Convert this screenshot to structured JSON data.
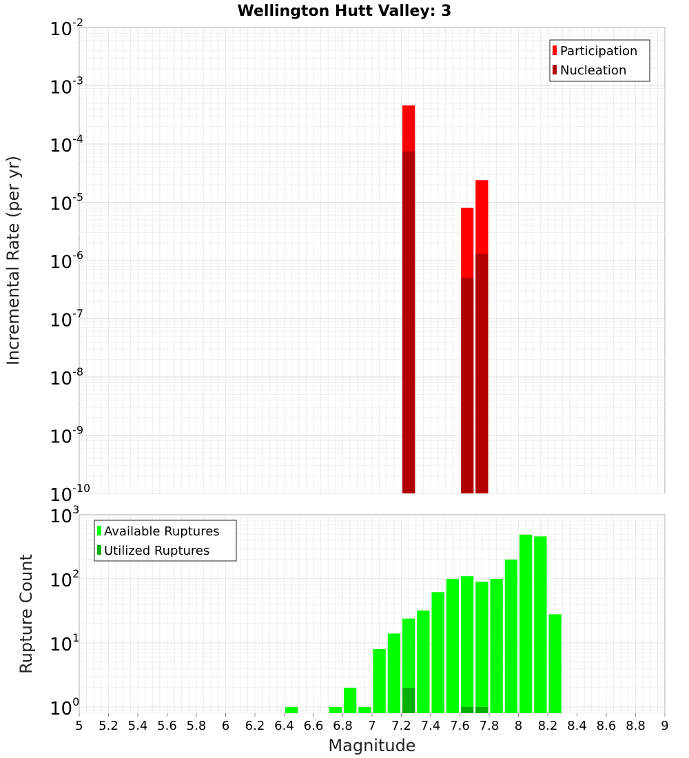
{
  "chart_data": [
    {
      "type": "bar",
      "title": "Wellington Hutt Valley: 3",
      "xlabel": "",
      "ylabel": "Incremental Rate (per yr)",
      "xlim": [
        5,
        9
      ],
      "yscale": "log",
      "ylim": [
        1e-10,
        0.01
      ],
      "y_ticks": [
        {
          "base": "10",
          "exp": "-10",
          "value": 1e-10
        },
        {
          "base": "10",
          "exp": "-9",
          "value": 1e-09
        },
        {
          "base": "10",
          "exp": "-8",
          "value": 1e-08
        },
        {
          "base": "10",
          "exp": "-7",
          "value": 1e-07
        },
        {
          "base": "10",
          "exp": "-6",
          "value": 1e-06
        },
        {
          "base": "10",
          "exp": "-5",
          "value": 1e-05
        },
        {
          "base": "10",
          "exp": "-4",
          "value": 0.0001
        },
        {
          "base": "10",
          "exp": "-3",
          "value": 0.001
        },
        {
          "base": "10",
          "exp": "-2",
          "value": 0.01
        }
      ],
      "bin_width": 0.1,
      "legend_position": "top-right",
      "series": [
        {
          "name": "Participation",
          "color": "#ff0000",
          "points": [
            {
              "x": 7.25,
              "y": 0.00046
            },
            {
              "x": 7.65,
              "y": 8e-06
            },
            {
              "x": 7.75,
              "y": 2.4e-05
            }
          ]
        },
        {
          "name": "Nucleation",
          "color": "#b00000",
          "points": [
            {
              "x": 7.25,
              "y": 7.5e-05
            },
            {
              "x": 7.65,
              "y": 5e-07
            },
            {
              "x": 7.75,
              "y": 1.3e-06
            }
          ]
        }
      ]
    },
    {
      "type": "bar",
      "xlabel": "Magnitude",
      "ylabel": "Rupture Count",
      "xlim": [
        5,
        9
      ],
      "x_ticks": [
        "5",
        "5.2",
        "5.4",
        "5.6",
        "5.8",
        "6",
        "6.2",
        "6.4",
        "6.6",
        "6.8",
        "7",
        "7.2",
        "7.4",
        "7.6",
        "7.8",
        "8",
        "8.2",
        "8.4",
        "8.6",
        "8.8",
        "9"
      ],
      "yscale": "log",
      "ylim": [
        0.8,
        1000
      ],
      "y_ticks": [
        {
          "base": "10",
          "exp": "0",
          "value": 1
        },
        {
          "base": "10",
          "exp": "1",
          "value": 10
        },
        {
          "base": "10",
          "exp": "2",
          "value": 100
        },
        {
          "base": "10",
          "exp": "3",
          "value": 1000
        }
      ],
      "bin_width": 0.1,
      "legend_position": "top-left",
      "series": [
        {
          "name": "Available Ruptures",
          "color": "#00ff00",
          "points": [
            {
              "x": 6.45,
              "y": 1
            },
            {
              "x": 6.75,
              "y": 1
            },
            {
              "x": 6.85,
              "y": 2
            },
            {
              "x": 6.95,
              "y": 1
            },
            {
              "x": 7.05,
              "y": 8
            },
            {
              "x": 7.15,
              "y": 14
            },
            {
              "x": 7.25,
              "y": 24
            },
            {
              "x": 7.35,
              "y": 32
            },
            {
              "x": 7.45,
              "y": 62
            },
            {
              "x": 7.55,
              "y": 100
            },
            {
              "x": 7.65,
              "y": 110
            },
            {
              "x": 7.75,
              "y": 90
            },
            {
              "x": 7.85,
              "y": 100
            },
            {
              "x": 7.95,
              "y": 200
            },
            {
              "x": 8.05,
              "y": 490
            },
            {
              "x": 8.15,
              "y": 460
            },
            {
              "x": 8.25,
              "y": 28
            }
          ]
        },
        {
          "name": "Utilized Ruptures",
          "color": "#00b000",
          "points": [
            {
              "x": 7.25,
              "y": 2
            },
            {
              "x": 7.65,
              "y": 1
            },
            {
              "x": 7.75,
              "y": 1
            }
          ]
        }
      ]
    }
  ]
}
